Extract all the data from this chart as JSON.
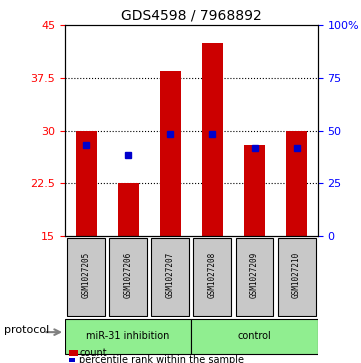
{
  "title": "GDS4598 / 7968892",
  "samples": [
    "GSM1027205",
    "GSM1027206",
    "GSM1027207",
    "GSM1027208",
    "GSM1027209",
    "GSM1027210"
  ],
  "groups": [
    "miR-31 inhibition",
    "miR-31 inhibition",
    "miR-31 inhibition",
    "control",
    "control",
    "control"
  ],
  "count_values": [
    29.9,
    22.5,
    38.5,
    42.5,
    28.0,
    29.9
  ],
  "percentile_values": [
    28.0,
    26.5,
    29.5,
    29.5,
    27.5,
    27.5
  ],
  "ymin": 15,
  "ymax": 45,
  "yticks_left": [
    15,
    22.5,
    30,
    37.5,
    45
  ],
  "yticks_right": [
    0,
    25,
    50,
    75,
    100
  ],
  "gridlines": [
    22.5,
    30,
    37.5
  ],
  "bar_color": "#cc0000",
  "blue_color": "#0000cc",
  "group_colors": {
    "miR-31 inhibition": "#90ee90",
    "control": "#90ee90"
  },
  "label_box_color": "#c8c8c8",
  "protocol_label": "protocol",
  "legend_count": "count",
  "legend_percentile": "percentile rank within the sample",
  "group_label_1": "miR-31 inhibition",
  "group_label_2": "control"
}
